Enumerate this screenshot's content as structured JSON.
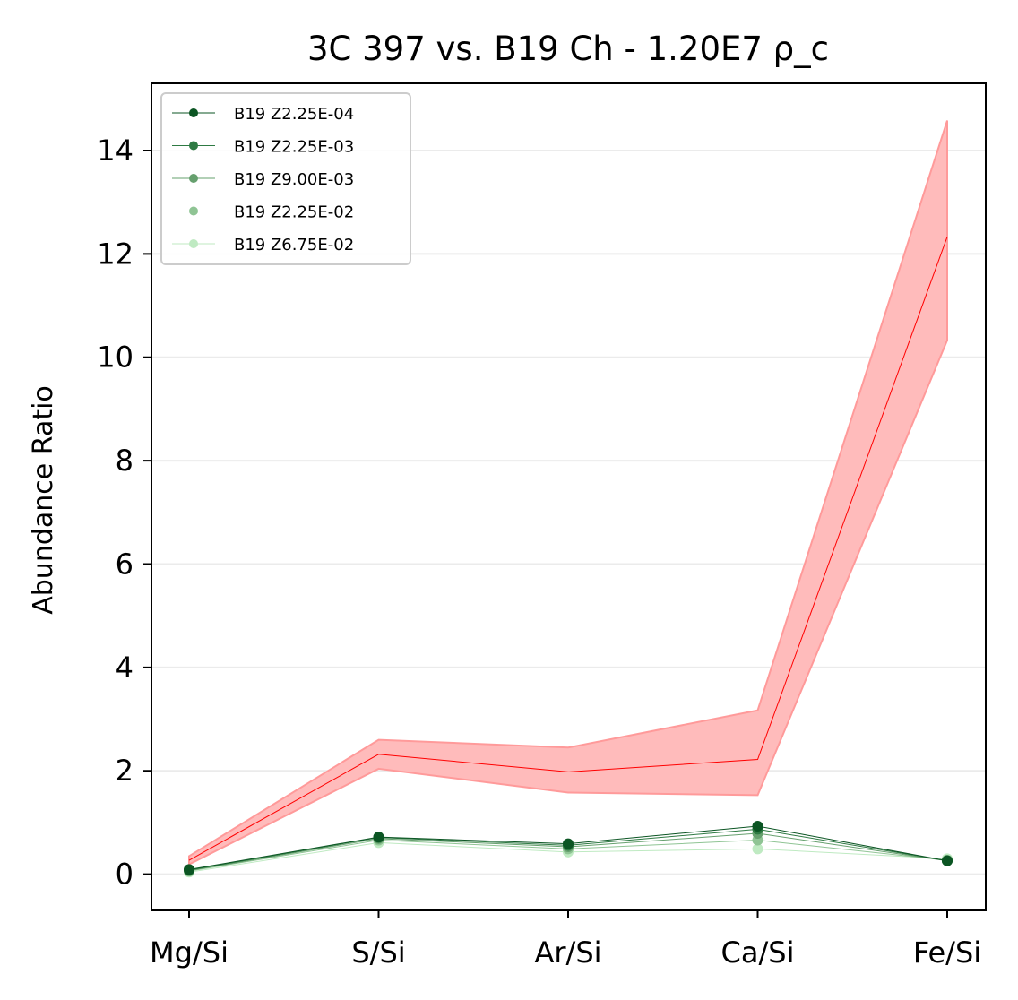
{
  "chart_data": {
    "type": "line",
    "title": "3C 397 vs. B19 Ch - 1.20E7 ρ_c",
    "xlabel": "",
    "ylabel": "Abundance Ratio",
    "categories": [
      "Mg/Si",
      "S/Si",
      "Ar/Si",
      "Ca/Si",
      "Fe/Si"
    ],
    "ylim": [
      -0.7,
      15.3
    ],
    "yticks": [
      0,
      2,
      4,
      6,
      8,
      10,
      12,
      14
    ],
    "grid": "horizontal",
    "legend_position": "top-left",
    "observed": {
      "color": "#ff0000",
      "band_color": "#ffbbbb",
      "values": [
        0.27,
        2.32,
        1.98,
        2.22,
        12.33
      ],
      "lower": [
        0.19,
        2.04,
        1.58,
        1.53,
        10.33
      ],
      "upper": [
        0.35,
        2.6,
        2.45,
        3.17,
        14.58
      ]
    },
    "series": [
      {
        "name": "B19 Z2.25E-04",
        "color": "#0b5523",
        "values": [
          0.09,
          0.72,
          0.59,
          0.93,
          0.26
        ]
      },
      {
        "name": "B19 Z2.25E-03",
        "color": "#2e7a43",
        "values": [
          0.08,
          0.71,
          0.56,
          0.87,
          0.26
        ]
      },
      {
        "name": "B19 Z9.00E-03",
        "color": "#66a06e",
        "values": [
          0.07,
          0.69,
          0.53,
          0.79,
          0.26
        ]
      },
      {
        "name": "B19 Z2.25E-02",
        "color": "#8fc494",
        "values": [
          0.06,
          0.66,
          0.49,
          0.66,
          0.27
        ]
      },
      {
        "name": "B19 Z6.75E-02",
        "color": "#bfeac2",
        "values": [
          0.04,
          0.61,
          0.43,
          0.49,
          0.3
        ]
      }
    ]
  }
}
